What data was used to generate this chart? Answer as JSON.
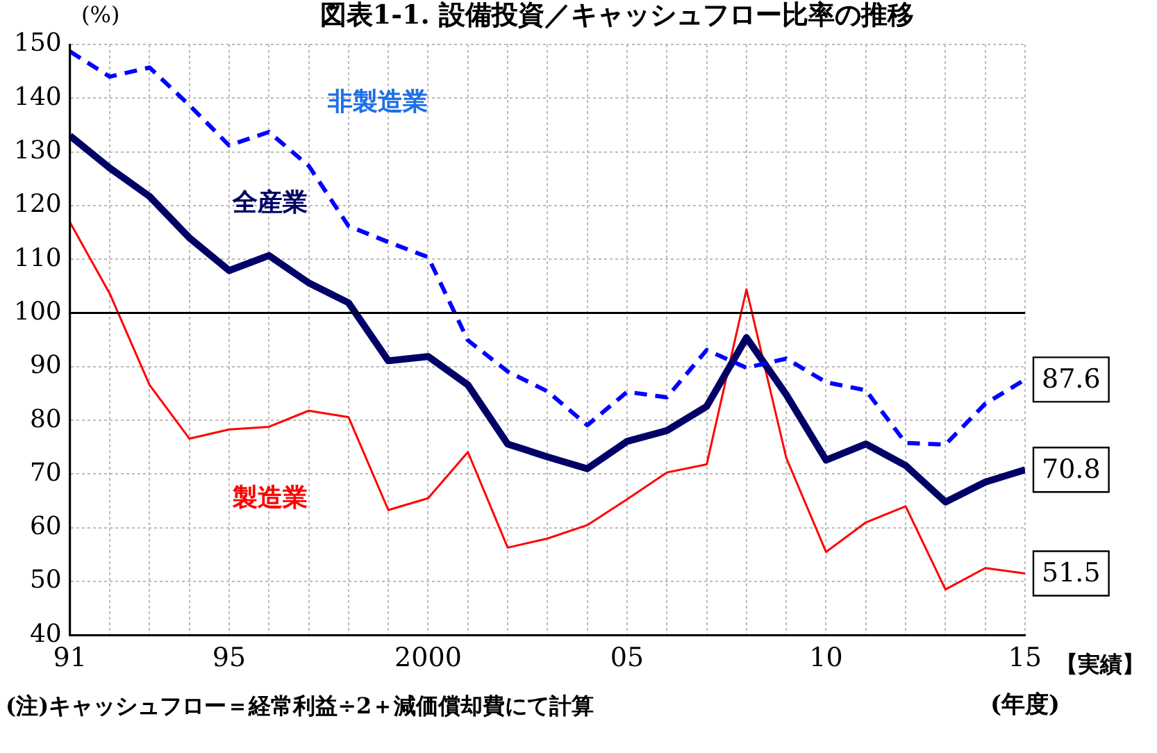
{
  "chart_data": {
    "type": "line",
    "title": "図表1-1. 設備投資／キャッシュフロー比率の推移",
    "ylabel": "(%)",
    "xlabel": "(年度)",
    "annotations": [
      "【実績】",
      "(注)キャッシュフロー＝経常利益÷2＋減価償却費にて計算"
    ],
    "x": [
      1991,
      1992,
      1993,
      1994,
      1995,
      1996,
      1997,
      1998,
      1999,
      2000,
      2001,
      2002,
      2003,
      2004,
      2005,
      2006,
      2007,
      2008,
      2009,
      2010,
      2011,
      2012,
      2013,
      2014,
      2015
    ],
    "series": [
      {
        "name": "非製造業",
        "color": "#0000ff",
        "line_style": "dashed",
        "values": [
          148.7,
          144,
          145.7,
          138.7,
          131.2,
          133.7,
          127.4,
          116.2,
          113.2,
          110.4,
          94.9,
          89.1,
          85.4,
          79.1,
          85.3,
          84.3,
          93.1,
          89.8,
          91.5,
          87.1,
          85.6,
          75.8,
          75.5,
          83.1,
          87.6
        ],
        "value_labels": [
          null,
          null,
          null,
          null,
          null,
          null,
          null,
          null,
          null,
          null,
          null,
          null,
          null,
          null,
          null,
          null,
          null,
          null,
          null,
          null,
          null,
          null,
          null,
          null,
          "87.6"
        ]
      },
      {
        "name": "全産業",
        "color": "#000066",
        "line_style": "solid",
        "values": [
          133,
          127,
          121.7,
          114,
          107.9,
          110.7,
          105.6,
          101.9,
          91.1,
          91.9,
          86.6,
          75.6,
          73.2,
          71,
          76.1,
          78.1,
          82.6,
          95.4,
          84.8,
          72.6,
          75.6,
          71.6,
          64.8,
          68.5,
          70.8
        ],
        "value_labels": [
          null,
          null,
          null,
          null,
          null,
          null,
          null,
          null,
          null,
          null,
          null,
          null,
          null,
          null,
          null,
          null,
          null,
          null,
          null,
          null,
          null,
          null,
          null,
          null,
          "70.8"
        ]
      },
      {
        "name": "製造業",
        "color": "#ff0000",
        "line_style": "solid",
        "values": [
          116.9,
          103.6,
          86.6,
          76.6,
          78.3,
          78.8,
          81.8,
          80.6,
          63.3,
          65.5,
          74.1,
          56.3,
          58,
          60.5,
          65.3,
          70.3,
          71.8,
          104.4,
          73,
          55.5,
          61,
          64,
          48.5,
          52.5,
          51.5
        ],
        "value_labels": [
          null,
          null,
          null,
          null,
          null,
          null,
          null,
          null,
          null,
          null,
          null,
          null,
          null,
          null,
          null,
          null,
          null,
          null,
          null,
          null,
          null,
          null,
          null,
          null,
          "51.5"
        ]
      }
    ],
    "xlim": [
      1991,
      2015
    ],
    "xticks": [
      {
        "value": 1991,
        "label": "91"
      },
      {
        "value": 1992,
        "label": null
      },
      {
        "value": 1993,
        "label": null
      },
      {
        "value": 1994,
        "label": null
      },
      {
        "value": 1995,
        "label": "95"
      },
      {
        "value": 1996,
        "label": null
      },
      {
        "value": 1997,
        "label": null
      },
      {
        "value": 1998,
        "label": null
      },
      {
        "value": 1999,
        "label": null
      },
      {
        "value": 2000,
        "label": "2000"
      },
      {
        "value": 2001,
        "label": null
      },
      {
        "value": 2002,
        "label": null
      },
      {
        "value": 2003,
        "label": null
      },
      {
        "value": 2004,
        "label": null
      },
      {
        "value": 2005,
        "label": "05"
      },
      {
        "value": 2006,
        "label": null
      },
      {
        "value": 2007,
        "label": null
      },
      {
        "value": 2008,
        "label": null
      },
      {
        "value": 2009,
        "label": null
      },
      {
        "value": 2010,
        "label": "10"
      },
      {
        "value": 2011,
        "label": null
      },
      {
        "value": 2012,
        "label": null
      },
      {
        "value": 2013,
        "label": null
      },
      {
        "value": 2014,
        "label": null
      },
      {
        "value": 2015,
        "label": "15"
      }
    ],
    "ylim": [
      40,
      150
    ],
    "yticks": [
      40,
      50,
      60,
      70,
      80,
      90,
      100,
      110,
      120,
      130,
      140,
      150
    ],
    "ref_lines": [
      {
        "axis": "y",
        "value": 100,
        "color": "#000000",
        "line_style": "solid"
      }
    ],
    "grid": true,
    "legend": false,
    "marker": "none"
  }
}
